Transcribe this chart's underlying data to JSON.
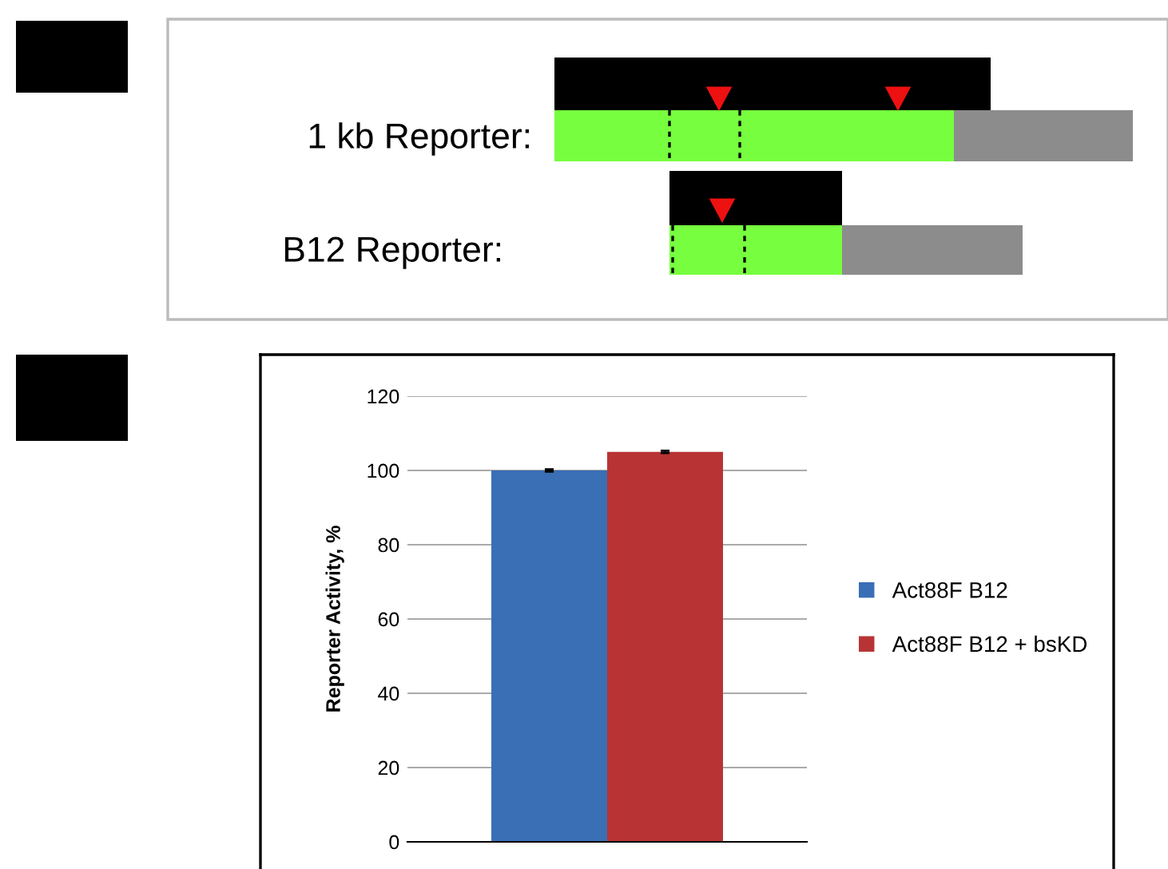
{
  "chart_data": [
    {
      "type": "other",
      "annotations": [
        "1 kb Reporter:",
        "B12 Reporter:"
      ]
    },
    {
      "type": "bar",
      "categories": [
        null
      ],
      "series": [
        {
          "name": "Act88F B12",
          "color": "#3a6fb5",
          "values": [
            100
          ],
          "errors": [
            0.3
          ]
        },
        {
          "name": "Act88F B12 + bsKD",
          "color": "#b83434",
          "values": [
            105
          ],
          "errors": [
            0.3
          ]
        }
      ],
      "ylabel": "Reporter Activity, %",
      "ylim": [
        0,
        120
      ],
      "yticks": [
        0,
        20,
        40,
        60,
        80,
        100,
        120
      ],
      "grid": "y",
      "legend": "right"
    }
  ]
}
